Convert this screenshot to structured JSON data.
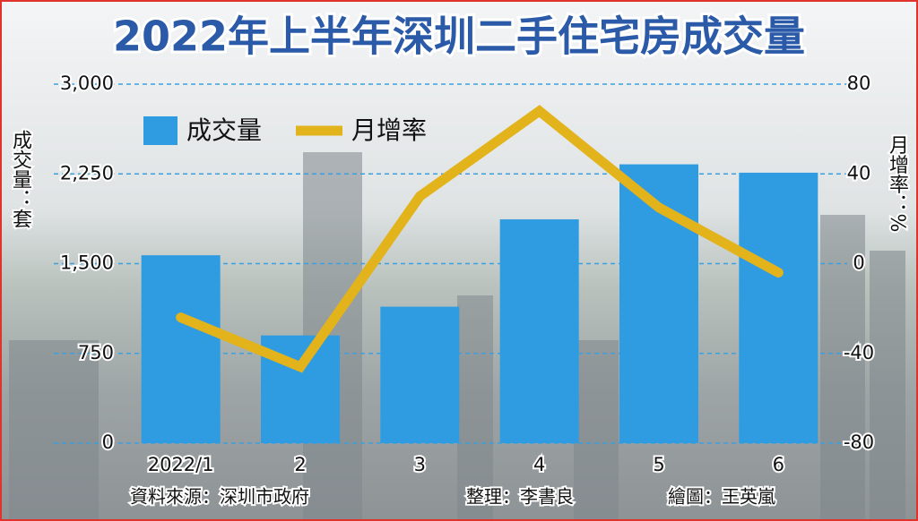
{
  "chart_data": {
    "type": "combo",
    "title": "2022年上半年深圳二手住宅房成交量",
    "ylabel": "成交量：套",
    "y2label": "月增率：%",
    "categories": [
      "2022/1",
      "2",
      "3",
      "4",
      "5",
      "6"
    ],
    "series": [
      {
        "name": "成交量",
        "type": "bar",
        "color": "#2f9be0",
        "values": [
          1570,
          900,
          1140,
          1870,
          2330,
          2260
        ]
      },
      {
        "name": "月增率",
        "type": "line",
        "axis": "y2",
        "color": "#e3b31c",
        "values": [
          -24,
          -46,
          30,
          68,
          25,
          -4
        ]
      }
    ],
    "ylim": [
      0,
      3000
    ],
    "yticks": [
      0,
      750,
      {
        "value": 1500,
        "label": "1,500"
      },
      {
        "value": 2250,
        "label": "2,250"
      },
      {
        "value": 3000,
        "label": "3,000"
      }
    ],
    "y2lim": [
      -80,
      80
    ],
    "y2ticks": [
      -80,
      -40,
      0,
      40,
      80
    ],
    "grid": true,
    "sources": [
      "資料來源：深圳市政府",
      "整理：李書良",
      "繪圖：王英嵐"
    ]
  }
}
